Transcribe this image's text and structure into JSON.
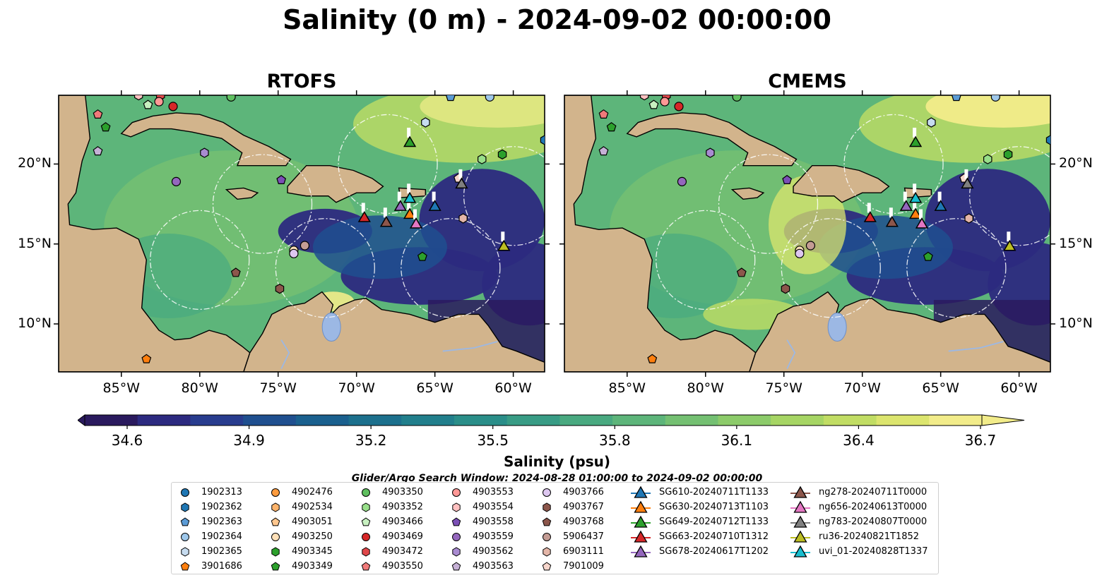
{
  "title": "Salinity (0 m) - 2024-09-02 00:00:00",
  "panels": [
    {
      "title": "RTOFS",
      "variant": 0
    },
    {
      "title": "CMEMS",
      "variant": 1
    }
  ],
  "map": {
    "lon_range": [
      -89,
      -58
    ],
    "lat_range": [
      7,
      24.3
    ],
    "lon_ticks": [
      "85°W",
      "80°W",
      "75°W",
      "70°W",
      "65°W",
      "60°W"
    ],
    "lon_tick_values": [
      -85,
      -80,
      -75,
      -70,
      -65,
      -60
    ],
    "lat_ticks": [
      "20°N",
      "15°N",
      "10°N"
    ],
    "lat_tick_values": [
      20,
      15,
      10
    ],
    "land_color": "#d2b48c",
    "lake_color": "#9cb8e4"
  },
  "colorbar": {
    "label": "Salinity (psu)",
    "ticks": [
      "34.6",
      "34.9",
      "35.2",
      "35.5",
      "35.8",
      "36.1",
      "36.4",
      "36.7"
    ],
    "min": 34.6,
    "max": 36.7,
    "colors": [
      "#2a1a5e",
      "#2c2a80",
      "#283c8e",
      "#1f4f8f",
      "#1a608e",
      "#1c708d",
      "#217f8c",
      "#2a8e89",
      "#389c85",
      "#49a980",
      "#5db57a",
      "#74c072",
      "#8ccb6a",
      "#a6d564",
      "#c1dd64",
      "#dce56e",
      "#f2ec8a"
    ]
  },
  "search_window": "Glider/Argo Search Window: 2024-08-28 01:00:00 to 2024-09-02 00:00:00",
  "argo_floats": [
    {
      "id": "1902313",
      "color": "#1f77b4",
      "marker": "circle"
    },
    {
      "id": "1902362",
      "color": "#1f77b4",
      "marker": "hexagon"
    },
    {
      "id": "1902363",
      "color": "#5b9bd5",
      "marker": "pentagon"
    },
    {
      "id": "1902364",
      "color": "#9ec7ea",
      "marker": "circle"
    },
    {
      "id": "1902365",
      "color": "#c6dbef",
      "marker": "hexagon"
    },
    {
      "id": "3901686",
      "color": "#ff7f0e",
      "marker": "pentagon"
    },
    {
      "id": "4902476",
      "color": "#fd9b3d",
      "marker": "circle"
    },
    {
      "id": "4902534",
      "color": "#fdb36b",
      "marker": "hexagon"
    },
    {
      "id": "4903051",
      "color": "#fdc68e",
      "marker": "pentagon"
    },
    {
      "id": "4903250",
      "color": "#ffe0b8",
      "marker": "circle"
    },
    {
      "id": "4903345",
      "color": "#2ca02c",
      "marker": "hexagon"
    },
    {
      "id": "4903349",
      "color": "#2ca02c",
      "marker": "pentagon"
    },
    {
      "id": "4903350",
      "color": "#5fbf5f",
      "marker": "circle"
    },
    {
      "id": "4903352",
      "color": "#98df8a",
      "marker": "hexagon"
    },
    {
      "id": "4903466",
      "color": "#c7f0c0",
      "marker": "pentagon"
    },
    {
      "id": "4903469",
      "color": "#d62728",
      "marker": "circle"
    },
    {
      "id": "4903472",
      "color": "#e0474a",
      "marker": "hexagon"
    },
    {
      "id": "4903550",
      "color": "#f07a7a",
      "marker": "pentagon"
    },
    {
      "id": "4903553",
      "color": "#ff9896",
      "marker": "circle"
    },
    {
      "id": "4903554",
      "color": "#ffc0c0",
      "marker": "hexagon"
    },
    {
      "id": "4903558",
      "color": "#7b4fb5",
      "marker": "pentagon"
    },
    {
      "id": "4903559",
      "color": "#9467bd",
      "marker": "circle"
    },
    {
      "id": "4903562",
      "color": "#a98bd1",
      "marker": "hexagon"
    },
    {
      "id": "4903563",
      "color": "#c5b0d5",
      "marker": "pentagon"
    },
    {
      "id": "4903766",
      "color": "#ddc7f0",
      "marker": "circle"
    },
    {
      "id": "4903767",
      "color": "#8c564b",
      "marker": "hexagon"
    },
    {
      "id": "4903768",
      "color": "#8c564b",
      "marker": "pentagon"
    },
    {
      "id": "5906437",
      "color": "#c49c94",
      "marker": "circle"
    },
    {
      "id": "6903111",
      "color": "#e4b6a8",
      "marker": "hexagon"
    },
    {
      "id": "7901009",
      "color": "#f7d6cc",
      "marker": "pentagon"
    }
  ],
  "gliders": [
    {
      "id": "SG610-20240711T1133",
      "color": "#1f77b4"
    },
    {
      "id": "SG630-20240713T1103",
      "color": "#ff7f0e"
    },
    {
      "id": "SG649-20240712T1133",
      "color": "#2ca02c"
    },
    {
      "id": "SG663-20240710T1312",
      "color": "#d62728"
    },
    {
      "id": "SG678-20240617T1202",
      "color": "#9467bd"
    },
    {
      "id": "ng278-20240711T0000",
      "color": "#8c564b"
    },
    {
      "id": "ng656-20240613T0000",
      "color": "#e377c2"
    },
    {
      "id": "ng783-20240807T0000",
      "color": "#7f7f7f"
    },
    {
      "id": "ru36-20240821T1852",
      "color": "#bcbd22"
    },
    {
      "id": "uvi_01-20240828T1337",
      "color": "#17becf"
    }
  ],
  "map_argo": [
    {
      "id": "1902362",
      "lon": -58,
      "lat": 21.5
    },
    {
      "id": "1902363",
      "lon": -64,
      "lat": 24.2
    },
    {
      "id": "1902364",
      "lon": -61.5,
      "lat": 24.2
    },
    {
      "id": "1902365",
      "lon": -65.6,
      "lat": 22.6
    },
    {
      "id": "3901686",
      "lon": -83.4,
      "lat": 7.8
    },
    {
      "id": "4903250",
      "lon": -74,
      "lat": 14.6
    },
    {
      "id": "4903345",
      "lon": -60.7,
      "lat": 20.6
    },
    {
      "id": "4903349",
      "lon": -65.8,
      "lat": 14.2
    },
    {
      "id": "4903350",
      "lon": -78,
      "lat": 24.2
    },
    {
      "id": "4903352",
      "lon": -62,
      "lat": 20.3
    },
    {
      "id": "4903466",
      "lon": -83.3,
      "lat": 23.7
    },
    {
      "id": "4903469",
      "lon": -81.7,
      "lat": 23.6
    },
    {
      "id": "4903472",
      "lon": -82.5,
      "lat": 24.3
    },
    {
      "id": "4903550",
      "lon": -86.5,
      "lat": 23.1
    },
    {
      "id": "4903553",
      "lon": -82.6,
      "lat": 23.9
    },
    {
      "id": "4903554",
      "lon": -83.9,
      "lat": 24.3
    },
    {
      "id": "4903558",
      "lon": -74.8,
      "lat": 19
    },
    {
      "id": "4903559",
      "lon": -81.5,
      "lat": 18.9
    },
    {
      "id": "4903562",
      "lon": -79.7,
      "lat": 20.7
    },
    {
      "id": "4903563",
      "lon": -86.5,
      "lat": 20.8
    },
    {
      "id": "4903766",
      "lon": -74,
      "lat": 14.4
    },
    {
      "id": "4903767",
      "lon": -74.9,
      "lat": 12.2
    },
    {
      "id": "4903768",
      "lon": -77.7,
      "lat": 13.2
    },
    {
      "id": "5906437",
      "lon": -73.3,
      "lat": 14.9
    },
    {
      "id": "6903111",
      "lon": -63.2,
      "lat": 16.6
    },
    {
      "id": "7901009",
      "lon": -63.5,
      "lat": 19.1
    },
    {
      "id": "4903349",
      "lon": -86,
      "lat": 22.3
    }
  ],
  "map_gliders": [
    {
      "id": "SG610-20240711T1133",
      "lon": -65,
      "lat": 17.3
    },
    {
      "id": "SG630-20240713T1103",
      "lon": -66.6,
      "lat": 16.8
    },
    {
      "id": "SG649-20240712T1133",
      "lon": -66.6,
      "lat": 21.3
    },
    {
      "id": "SG663-20240710T1312",
      "lon": -69.5,
      "lat": 16.6
    },
    {
      "id": "SG678-20240617T1202",
      "lon": -67.2,
      "lat": 17.3
    },
    {
      "id": "ng278-20240711T0000",
      "lon": -68.1,
      "lat": 16.3
    },
    {
      "id": "ng656-20240613T0000",
      "lon": -66.2,
      "lat": 16.2
    },
    {
      "id": "ng783-20240807T0000",
      "lon": -63.3,
      "lat": 18.7
    },
    {
      "id": "ru36-20240821T1852",
      "lon": -60.6,
      "lat": 14.8
    },
    {
      "id": "uvi_01-20240828T1337",
      "lon": -66.6,
      "lat": 17.8
    }
  ]
}
